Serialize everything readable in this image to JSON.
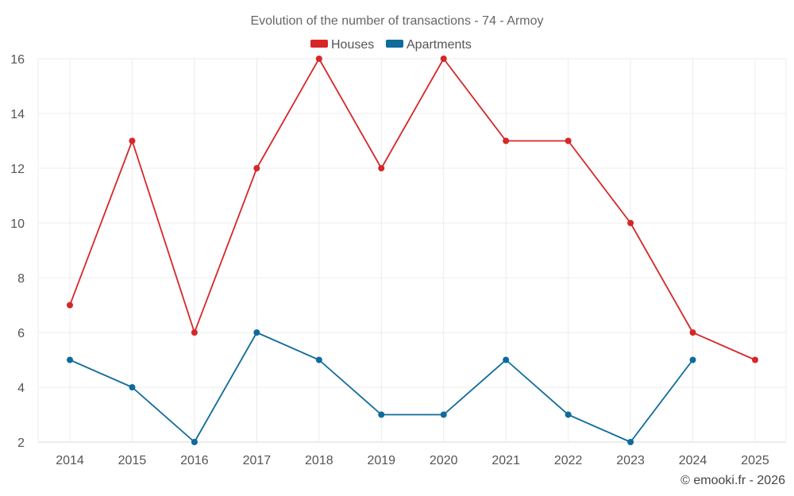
{
  "chart_data": {
    "type": "line",
    "title": "Evolution of the number of transactions - 74 - Armoy",
    "categories": [
      "2014",
      "2015",
      "2016",
      "2017",
      "2018",
      "2019",
      "2020",
      "2021",
      "2022",
      "2023",
      "2024",
      "2025"
    ],
    "series": [
      {
        "name": "Houses",
        "color": "#d62728",
        "values": [
          7,
          13,
          6,
          12,
          16,
          12,
          16,
          13,
          13,
          10,
          6,
          5
        ]
      },
      {
        "name": "Apartments",
        "color": "#0e6b9c",
        "values": [
          5,
          4,
          2,
          6,
          5,
          3,
          3,
          5,
          3,
          2,
          5,
          null
        ]
      }
    ],
    "yticks": [
      2,
      4,
      6,
      8,
      10,
      12,
      14,
      16
    ],
    "ylim": [
      2,
      16
    ],
    "legend_position": "top-center",
    "grid": true,
    "credit": "© emooki.fr - 2026"
  }
}
